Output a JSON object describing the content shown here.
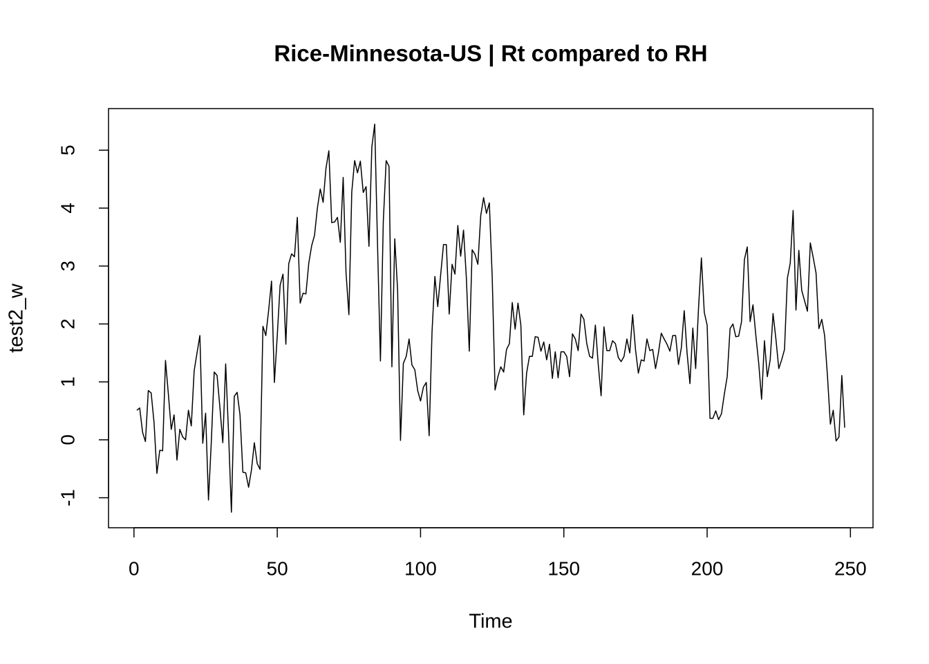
{
  "chart_data": {
    "type": "line",
    "title": "Rice-Minnesota-US | Rt compared to RH",
    "x_label": "Time",
    "y_label": "test2_w",
    "color": "#000000",
    "xlim": [
      -8.88,
      257.88
    ],
    "ylim": [
      -1.518,
      5.718
    ],
    "xticks": [
      0,
      50,
      100,
      150,
      200,
      250
    ],
    "yticks": [
      -1,
      0,
      1,
      2,
      3,
      4,
      5
    ],
    "grid": false,
    "x": [
      1,
      2,
      3,
      4,
      5,
      6,
      7,
      8,
      9,
      10,
      11,
      12,
      13,
      14,
      15,
      16,
      17,
      18,
      19,
      20,
      21,
      22,
      23,
      24,
      25,
      26,
      27,
      28,
      29,
      30,
      31,
      32,
      33,
      34,
      35,
      36,
      37,
      38,
      39,
      40,
      41,
      42,
      43,
      44,
      45,
      46,
      47,
      48,
      49,
      50,
      51,
      52,
      53,
      54,
      55,
      56,
      57,
      58,
      59,
      60,
      61,
      62,
      63,
      64,
      65,
      66,
      67,
      68,
      69,
      70,
      71,
      72,
      73,
      74,
      75,
      76,
      77,
      78,
      79,
      80,
      81,
      82,
      83,
      84,
      85,
      86,
      87,
      88,
      89,
      90,
      91,
      92,
      93,
      94,
      95,
      96,
      97,
      98,
      99,
      100,
      101,
      102,
      103,
      104,
      105,
      106,
      107,
      108,
      109,
      110,
      111,
      112,
      113,
      114,
      115,
      116,
      117,
      118,
      119,
      120,
      121,
      122,
      123,
      124,
      125,
      126,
      127,
      128,
      129,
      130,
      131,
      132,
      133,
      134,
      135,
      136,
      137,
      138,
      139,
      140,
      141,
      142,
      143,
      144,
      145,
      146,
      147,
      148,
      149,
      150,
      151,
      152,
      153,
      154,
      155,
      156,
      157,
      158,
      159,
      160,
      161,
      162,
      163,
      164,
      165,
      166,
      167,
      168,
      169,
      170,
      171,
      172,
      173,
      174,
      175,
      176,
      177,
      178,
      179,
      180,
      181,
      182,
      183,
      184,
      185,
      186,
      187,
      188,
      189,
      190,
      191,
      192,
      193,
      194,
      195,
      196,
      197,
      198,
      199,
      200,
      201,
      202,
      203,
      204,
      205,
      206,
      207,
      208,
      209,
      210,
      211,
      212,
      213,
      214,
      215,
      216,
      217,
      218,
      219,
      220,
      221,
      222,
      223,
      224,
      225,
      226,
      227,
      228,
      229,
      230,
      231,
      232,
      233,
      234,
      235,
      236,
      237,
      238,
      239,
      240,
      241,
      242,
      243,
      244,
      245,
      246,
      247,
      248
    ],
    "values": [
      0.51,
      0.55,
      0.13,
      -0.03,
      0.85,
      0.81,
      0.3,
      -0.58,
      -0.18,
      -0.19,
      1.37,
      0.79,
      0.18,
      0.43,
      -0.35,
      0.18,
      0.05,
      0.0,
      0.51,
      0.24,
      1.19,
      1.5,
      1.8,
      -0.06,
      0.46,
      -1.04,
      -0.02,
      1.17,
      1.11,
      0.55,
      -0.05,
      1.31,
      0.12,
      -1.25,
      0.75,
      0.82,
      0.43,
      -0.56,
      -0.57,
      -0.82,
      -0.52,
      -0.05,
      -0.41,
      -0.51,
      1.96,
      1.8,
      2.24,
      2.74,
      0.99,
      1.8,
      2.67,
      2.86,
      1.65,
      3.04,
      3.21,
      3.16,
      3.84,
      2.36,
      2.53,
      2.52,
      3.05,
      3.35,
      3.53,
      4.0,
      4.33,
      4.1,
      4.69,
      4.99,
      3.75,
      3.76,
      3.84,
      3.41,
      4.53,
      2.88,
      2.16,
      4.28,
      4.82,
      4.61,
      4.81,
      4.27,
      4.37,
      3.34,
      5.05,
      5.45,
      3.35,
      1.36,
      3.77,
      4.82,
      4.72,
      1.26,
      3.47,
      2.58,
      -0.01,
      1.32,
      1.44,
      1.74,
      1.29,
      1.21,
      0.85,
      0.67,
      0.91,
      0.99,
      0.07,
      1.86,
      2.82,
      2.3,
      2.84,
      3.37,
      3.37,
      2.17,
      3.03,
      2.86,
      3.7,
      3.17,
      3.62,
      2.78,
      1.53,
      3.28,
      3.2,
      3.03,
      3.87,
      4.18,
      3.91,
      4.09,
      2.82,
      0.86,
      1.09,
      1.26,
      1.17,
      1.56,
      1.66,
      2.37,
      1.91,
      2.36,
      1.98,
      0.43,
      1.15,
      1.44,
      1.44,
      1.78,
      1.77,
      1.53,
      1.69,
      1.38,
      1.65,
      1.06,
      1.52,
      1.07,
      1.52,
      1.52,
      1.44,
      1.09,
      1.83,
      1.74,
      1.54,
      2.17,
      2.08,
      1.66,
      1.44,
      1.41,
      1.98,
      1.3,
      0.76,
      1.95,
      1.54,
      1.54,
      1.71,
      1.66,
      1.42,
      1.35,
      1.44,
      1.74,
      1.5,
      2.16,
      1.56,
      1.15,
      1.38,
      1.36,
      1.74,
      1.54,
      1.56,
      1.23,
      1.5,
      1.84,
      1.74,
      1.65,
      1.53,
      1.8,
      1.8,
      1.3,
      1.59,
      2.23,
      1.5,
      0.97,
      1.93,
      1.23,
      2.28,
      3.14,
      2.2,
      1.98,
      0.37,
      0.37,
      0.5,
      0.35,
      0.45,
      0.79,
      1.09,
      1.92,
      2.0,
      1.78,
      1.79,
      2.04,
      3.11,
      3.33,
      2.04,
      2.33,
      1.8,
      1.32,
      0.7,
      1.71,
      1.09,
      1.38,
      2.18,
      1.74,
      1.23,
      1.38,
      1.56,
      2.79,
      3.05,
      3.96,
      2.24,
      3.27,
      2.58,
      2.4,
      2.22,
      3.4,
      3.15,
      2.88,
      1.92,
      2.08,
      1.8,
      1.09,
      0.27,
      0.51,
      -0.02,
      0.05,
      1.11,
      0.21
    ]
  }
}
